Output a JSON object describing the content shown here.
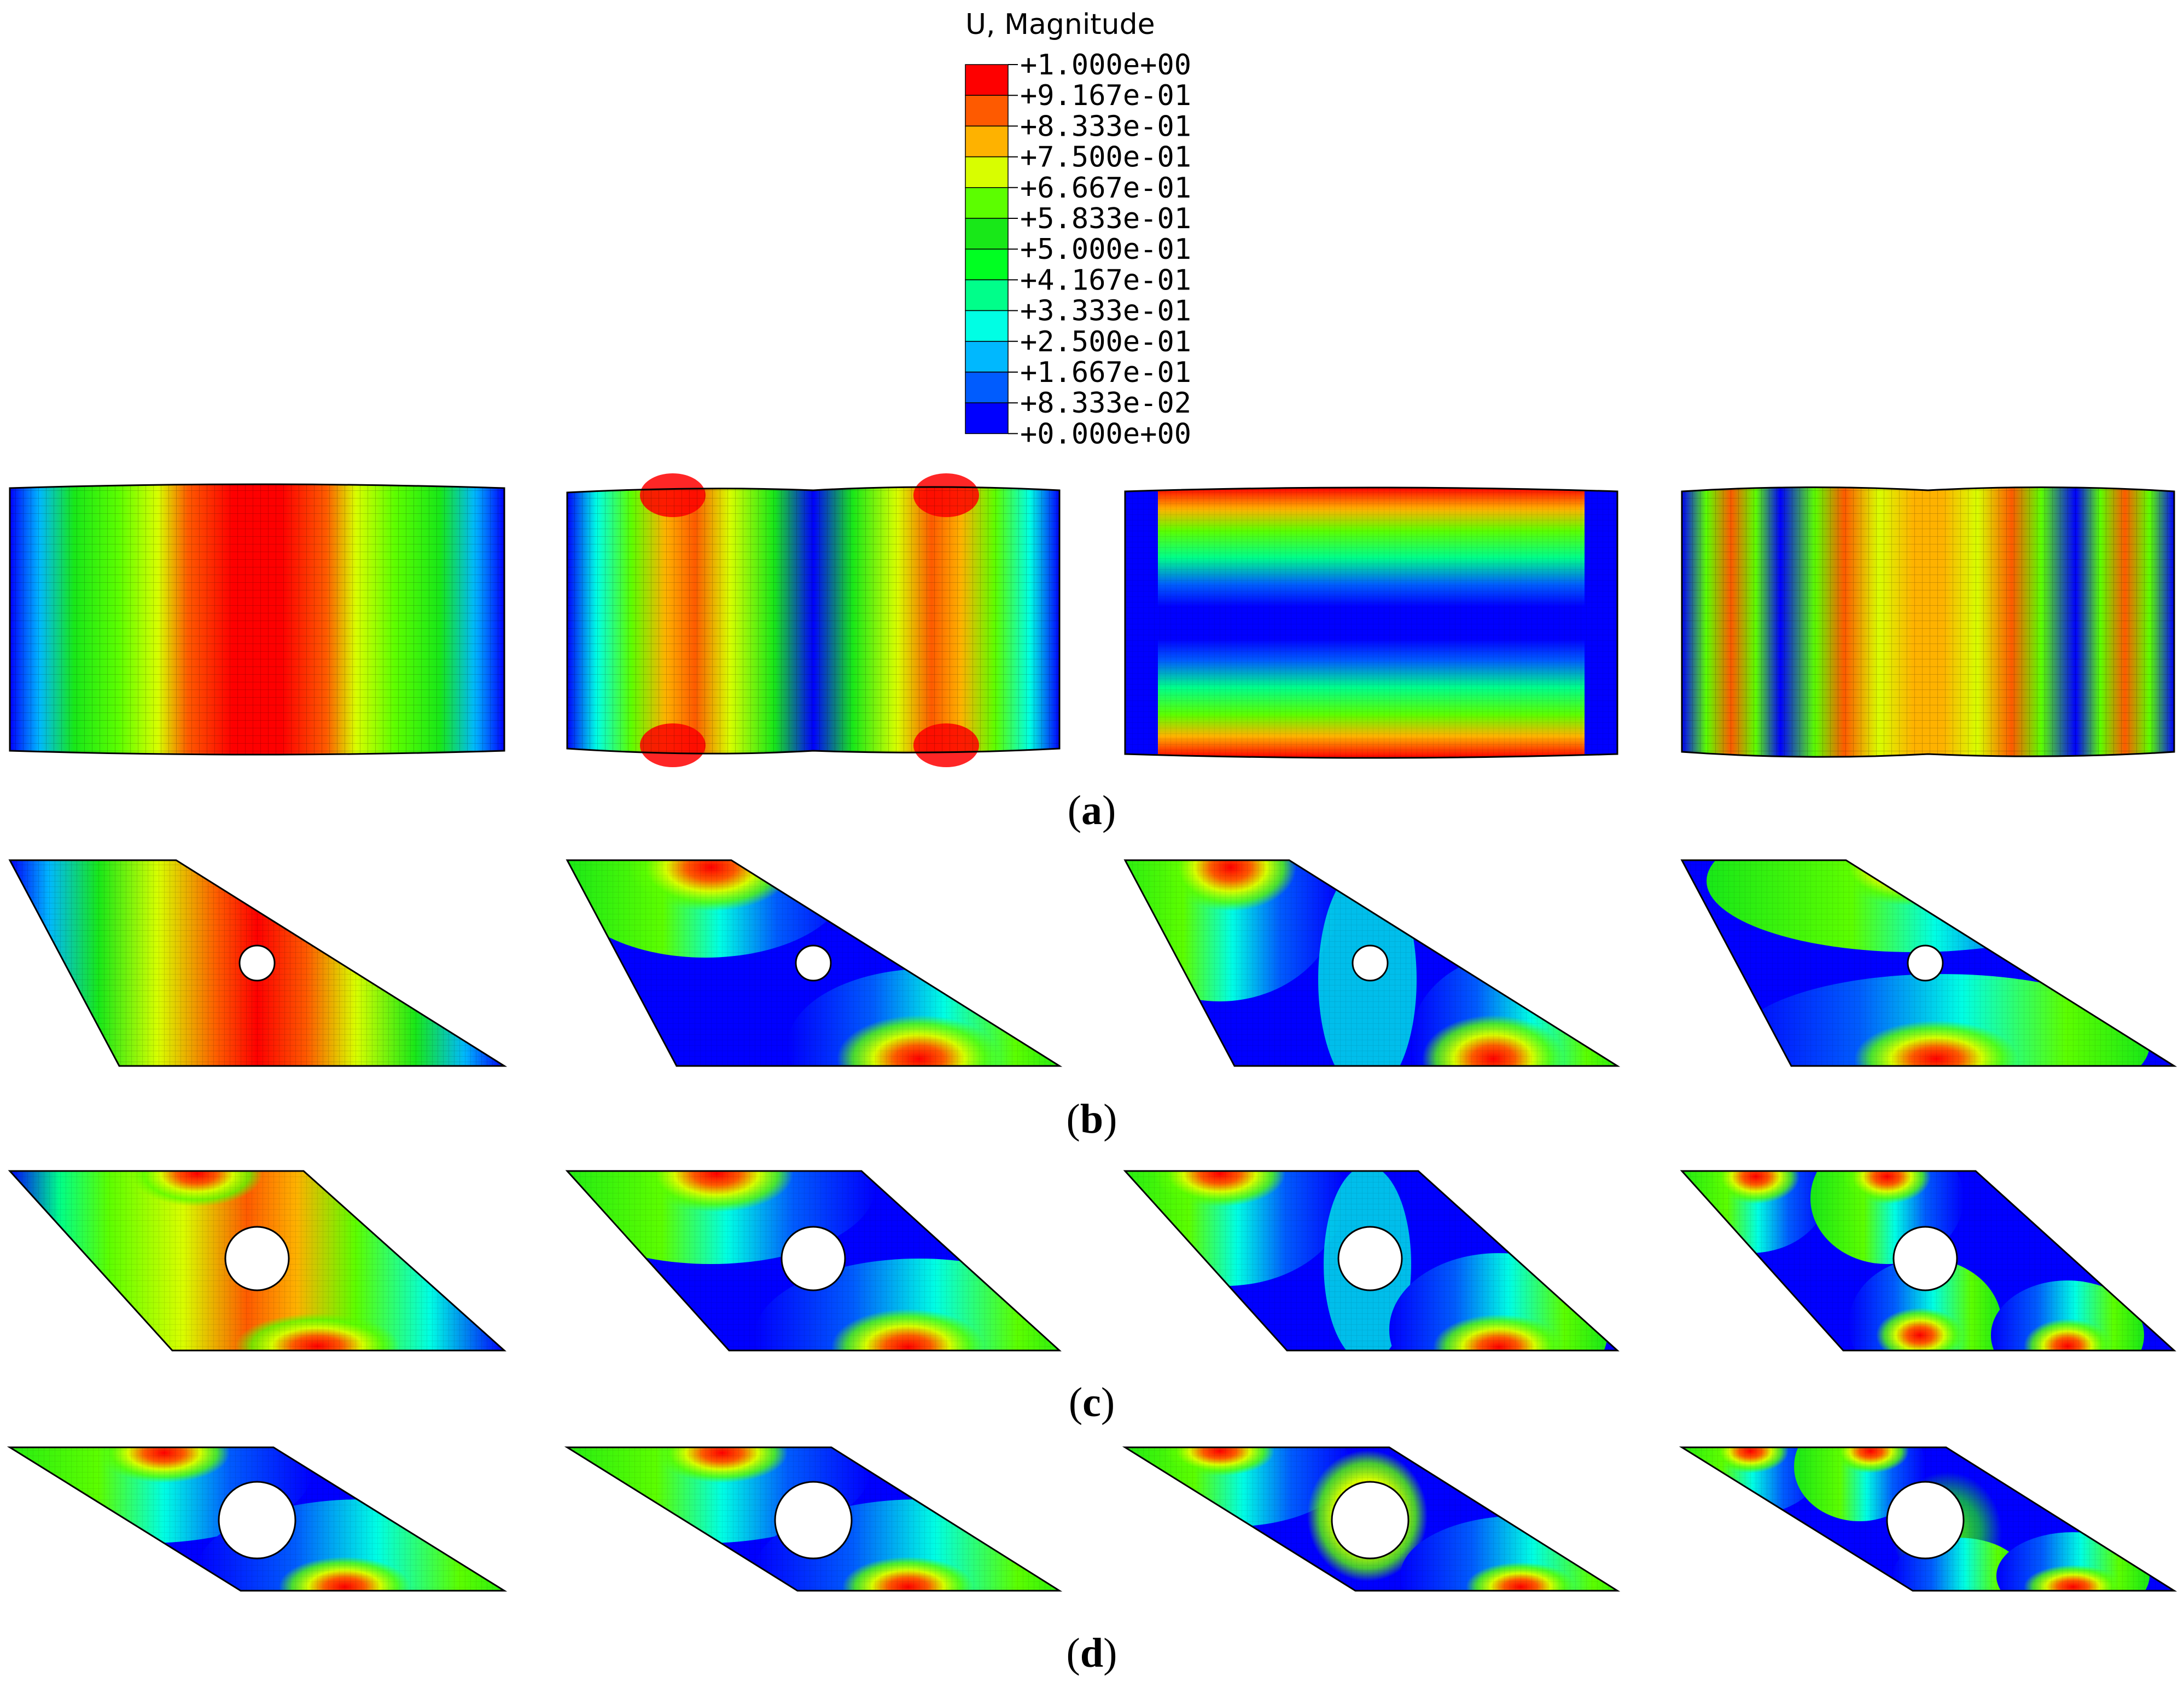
{
  "legend": {
    "title": "U, Magnitude",
    "ticks": [
      "+1.000e+00",
      "+9.167e-01",
      "+8.333e-01",
      "+7.500e-01",
      "+6.667e-01",
      "+5.833e-01",
      "+5.000e-01",
      "+4.167e-01",
      "+3.333e-01",
      "+2.500e-01",
      "+1.667e-01",
      "+8.333e-02",
      "+0.000e+00"
    ],
    "colors": [
      "#fe0000",
      "#fe5a00",
      "#feb200",
      "#d8fe00",
      "#5cfe00",
      "#18e818",
      "#00ff22",
      "#00fe8a",
      "#00fee4",
      "#00b8fe",
      "#005cfe",
      "#0000fe"
    ]
  },
  "rows": [
    {
      "label_open": "(",
      "label_letter": "a",
      "label_close": ")",
      "shape": "rectangle",
      "mode_count": 4
    },
    {
      "label_open": "(",
      "label_letter": "b",
      "label_close": ")",
      "shape": "parallelogram-small-hole",
      "mode_count": 4
    },
    {
      "label_open": "(",
      "label_letter": "c",
      "label_close": ")",
      "shape": "parallelogram-medium-hole",
      "mode_count": 4
    },
    {
      "label_open": "(",
      "label_letter": "d",
      "label_close": ")",
      "shape": "parallelogram-large-hole",
      "mode_count": 4
    }
  ]
}
